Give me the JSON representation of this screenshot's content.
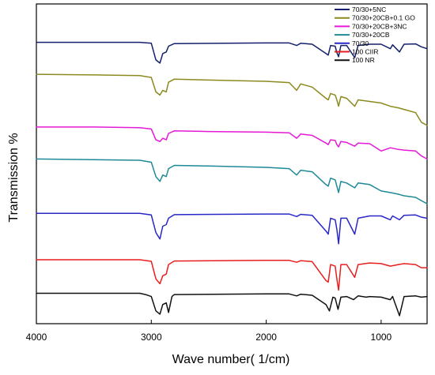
{
  "chart_data": {
    "type": "line",
    "title": "",
    "xlabel": "Wave number( 1/cm)",
    "ylabel": "Transmission %",
    "xlim": [
      4000,
      600
    ],
    "x_reversed": true,
    "x_ticks": [
      4000,
      3000,
      2000,
      1000
    ],
    "x_tick_labels": [
      "4000",
      "3000",
      "2000",
      "1000"
    ],
    "y_ticks_shown": false,
    "grid": false,
    "legend_position": "top-right",
    "series": [
      {
        "name": "70/30+5NC",
        "color": "#14206b",
        "offset": 0.88,
        "points": [
          [
            4000,
            0
          ],
          [
            3500,
            0
          ],
          [
            3100,
            0
          ],
          [
            3000,
            -0.003
          ],
          [
            2960,
            -0.055
          ],
          [
            2925,
            -0.065
          ],
          [
            2900,
            -0.035
          ],
          [
            2870,
            -0.03
          ],
          [
            2850,
            -0.012
          ],
          [
            2800,
            -0.004
          ],
          [
            2000,
            -0.002
          ],
          [
            1800,
            -0.002
          ],
          [
            1735,
            -0.01
          ],
          [
            1700,
            -0.003
          ],
          [
            1600,
            -0.006
          ],
          [
            1480,
            -0.035
          ],
          [
            1460,
            -0.04
          ],
          [
            1440,
            -0.01
          ],
          [
            1400,
            -0.012
          ],
          [
            1385,
            -0.032
          ],
          [
            1370,
            -0.045
          ],
          [
            1350,
            -0.01
          ],
          [
            1300,
            -0.01
          ],
          [
            1230,
            -0.048
          ],
          [
            1200,
            -0.01
          ],
          [
            1100,
            -0.006
          ],
          [
            1000,
            -0.006
          ],
          [
            920,
            -0.02
          ],
          [
            900,
            -0.008
          ],
          [
            840,
            -0.03
          ],
          [
            800,
            -0.006
          ],
          [
            700,
            -0.005
          ],
          [
            650,
            -0.014
          ],
          [
            600,
            -0.02
          ]
        ]
      },
      {
        "name": "70/30+20CB+0.1 GO",
        "color": "#8c8a1e",
        "offset": 0.78,
        "points": [
          [
            4000,
            0
          ],
          [
            3500,
            -0.002
          ],
          [
            3100,
            -0.004
          ],
          [
            3000,
            -0.01
          ],
          [
            2960,
            -0.055
          ],
          [
            2925,
            -0.065
          ],
          [
            2900,
            -0.05
          ],
          [
            2870,
            -0.055
          ],
          [
            2850,
            -0.025
          ],
          [
            2800,
            -0.015
          ],
          [
            2500,
            -0.018
          ],
          [
            2000,
            -0.022
          ],
          [
            1800,
            -0.026
          ],
          [
            1735,
            -0.05
          ],
          [
            1700,
            -0.03
          ],
          [
            1600,
            -0.04
          ],
          [
            1480,
            -0.075
          ],
          [
            1460,
            -0.08
          ],
          [
            1440,
            -0.06
          ],
          [
            1400,
            -0.065
          ],
          [
            1385,
            -0.08
          ],
          [
            1370,
            -0.1
          ],
          [
            1350,
            -0.07
          ],
          [
            1300,
            -0.075
          ],
          [
            1230,
            -0.1
          ],
          [
            1200,
            -0.08
          ],
          [
            1100,
            -0.085
          ],
          [
            1000,
            -0.09
          ],
          [
            920,
            -0.1
          ],
          [
            850,
            -0.105
          ],
          [
            800,
            -0.11
          ],
          [
            700,
            -0.12
          ],
          [
            650,
            -0.15
          ],
          [
            600,
            -0.16
          ]
        ]
      },
      {
        "name": "70/30+20CB+3NC",
        "color": "#e619d6",
        "offset": 0.615,
        "points": [
          [
            4000,
            0
          ],
          [
            3500,
            0
          ],
          [
            3100,
            -0.002
          ],
          [
            3000,
            -0.006
          ],
          [
            2960,
            -0.04
          ],
          [
            2925,
            -0.045
          ],
          [
            2900,
            -0.035
          ],
          [
            2870,
            -0.04
          ],
          [
            2850,
            -0.02
          ],
          [
            2800,
            -0.012
          ],
          [
            2500,
            -0.014
          ],
          [
            2000,
            -0.016
          ],
          [
            1800,
            -0.018
          ],
          [
            1735,
            -0.035
          ],
          [
            1700,
            -0.022
          ],
          [
            1600,
            -0.026
          ],
          [
            1480,
            -0.05
          ],
          [
            1460,
            -0.055
          ],
          [
            1440,
            -0.04
          ],
          [
            1400,
            -0.042
          ],
          [
            1385,
            -0.055
          ],
          [
            1370,
            -0.062
          ],
          [
            1350,
            -0.045
          ],
          [
            1300,
            -0.048
          ],
          [
            1230,
            -0.06
          ],
          [
            1200,
            -0.05
          ],
          [
            1100,
            -0.052
          ],
          [
            1000,
            -0.075
          ],
          [
            920,
            -0.065
          ],
          [
            850,
            -0.07
          ],
          [
            800,
            -0.072
          ],
          [
            700,
            -0.075
          ],
          [
            650,
            -0.09
          ],
          [
            600,
            -0.1
          ]
        ]
      },
      {
        "name": "70/30+20CB",
        "color": "#1e8a96",
        "offset": 0.515,
        "points": [
          [
            4000,
            0
          ],
          [
            3500,
            -0.002
          ],
          [
            3100,
            -0.004
          ],
          [
            3000,
            -0.01
          ],
          [
            2960,
            -0.055
          ],
          [
            2925,
            -0.07
          ],
          [
            2900,
            -0.05
          ],
          [
            2870,
            -0.055
          ],
          [
            2850,
            -0.03
          ],
          [
            2800,
            -0.02
          ],
          [
            2500,
            -0.022
          ],
          [
            2000,
            -0.026
          ],
          [
            1800,
            -0.03
          ],
          [
            1735,
            -0.05
          ],
          [
            1700,
            -0.035
          ],
          [
            1600,
            -0.04
          ],
          [
            1480,
            -0.08
          ],
          [
            1460,
            -0.085
          ],
          [
            1440,
            -0.06
          ],
          [
            1400,
            -0.065
          ],
          [
            1385,
            -0.085
          ],
          [
            1370,
            -0.105
          ],
          [
            1350,
            -0.07
          ],
          [
            1300,
            -0.075
          ],
          [
            1230,
            -0.09
          ],
          [
            1200,
            -0.075
          ],
          [
            1100,
            -0.08
          ],
          [
            1000,
            -0.1
          ],
          [
            920,
            -0.105
          ],
          [
            850,
            -0.11
          ],
          [
            800,
            -0.115
          ],
          [
            700,
            -0.12
          ],
          [
            650,
            -0.13
          ],
          [
            600,
            -0.14
          ]
        ]
      },
      {
        "name": "70/30",
        "color": "#2828c8",
        "offset": 0.345,
        "points": [
          [
            4000,
            0
          ],
          [
            3500,
            0
          ],
          [
            3100,
            0
          ],
          [
            3000,
            -0.005
          ],
          [
            2960,
            -0.06
          ],
          [
            2925,
            -0.08
          ],
          [
            2900,
            -0.04
          ],
          [
            2870,
            -0.035
          ],
          [
            2850,
            -0.015
          ],
          [
            2800,
            -0.004
          ],
          [
            2000,
            -0.002
          ],
          [
            1800,
            -0.002
          ],
          [
            1735,
            -0.01
          ],
          [
            1700,
            -0.003
          ],
          [
            1600,
            -0.006
          ],
          [
            1480,
            -0.055
          ],
          [
            1460,
            -0.065
          ],
          [
            1440,
            -0.015
          ],
          [
            1400,
            -0.02
          ],
          [
            1385,
            -0.05
          ],
          [
            1370,
            -0.095
          ],
          [
            1350,
            -0.015
          ],
          [
            1300,
            -0.015
          ],
          [
            1230,
            -0.065
          ],
          [
            1200,
            -0.015
          ],
          [
            1100,
            -0.008
          ],
          [
            1000,
            -0.008
          ],
          [
            920,
            -0.02
          ],
          [
            900,
            -0.008
          ],
          [
            840,
            -0.02
          ],
          [
            800,
            -0.006
          ],
          [
            700,
            -0.005
          ],
          [
            650,
            -0.012
          ],
          [
            600,
            -0.015
          ]
        ]
      },
      {
        "name": "100  CIIR",
        "color": "#e81e1e",
        "offset": 0.2,
        "points": [
          [
            4000,
            0
          ],
          [
            3500,
            0
          ],
          [
            3100,
            0
          ],
          [
            3000,
            -0.005
          ],
          [
            2960,
            -0.06
          ],
          [
            2925,
            -0.075
          ],
          [
            2900,
            -0.05
          ],
          [
            2870,
            -0.045
          ],
          [
            2850,
            -0.015
          ],
          [
            2800,
            -0.004
          ],
          [
            2000,
            -0.002
          ],
          [
            1800,
            -0.002
          ],
          [
            1735,
            -0.008
          ],
          [
            1700,
            -0.003
          ],
          [
            1600,
            -0.006
          ],
          [
            1480,
            -0.065
          ],
          [
            1460,
            -0.07
          ],
          [
            1440,
            -0.015
          ],
          [
            1400,
            -0.02
          ],
          [
            1385,
            -0.06
          ],
          [
            1370,
            -0.095
          ],
          [
            1350,
            -0.015
          ],
          [
            1300,
            -0.015
          ],
          [
            1230,
            -0.055
          ],
          [
            1200,
            -0.015
          ],
          [
            1100,
            -0.01
          ],
          [
            1000,
            -0.012
          ],
          [
            920,
            -0.02
          ],
          [
            850,
            -0.015
          ],
          [
            800,
            -0.012
          ],
          [
            700,
            -0.015
          ],
          [
            650,
            -0.025
          ],
          [
            600,
            -0.025
          ]
        ]
      },
      {
        "name": "100 NR",
        "color": "#111111",
        "offset": 0.095,
        "points": [
          [
            4000,
            0
          ],
          [
            3500,
            0
          ],
          [
            3100,
            0
          ],
          [
            3050,
            -0.004
          ],
          [
            3000,
            -0.01
          ],
          [
            2960,
            -0.055
          ],
          [
            2925,
            -0.065
          ],
          [
            2900,
            -0.035
          ],
          [
            2870,
            -0.03
          ],
          [
            2850,
            -0.06
          ],
          [
            2820,
            -0.01
          ],
          [
            2800,
            -0.004
          ],
          [
            2000,
            -0.002
          ],
          [
            1800,
            -0.002
          ],
          [
            1735,
            -0.008
          ],
          [
            1700,
            -0.003
          ],
          [
            1600,
            -0.006
          ],
          [
            1480,
            -0.035
          ],
          [
            1450,
            -0.055
          ],
          [
            1420,
            -0.012
          ],
          [
            1400,
            -0.015
          ],
          [
            1375,
            -0.05
          ],
          [
            1350,
            -0.012
          ],
          [
            1300,
            -0.01
          ],
          [
            1240,
            -0.02
          ],
          [
            1200,
            -0.008
          ],
          [
            1130,
            -0.012
          ],
          [
            1100,
            -0.01
          ],
          [
            1000,
            -0.012
          ],
          [
            920,
            -0.02
          ],
          [
            900,
            -0.01
          ],
          [
            840,
            -0.07
          ],
          [
            800,
            -0.01
          ],
          [
            700,
            -0.008
          ],
          [
            650,
            -0.012
          ],
          [
            600,
            -0.01
          ]
        ]
      }
    ]
  }
}
